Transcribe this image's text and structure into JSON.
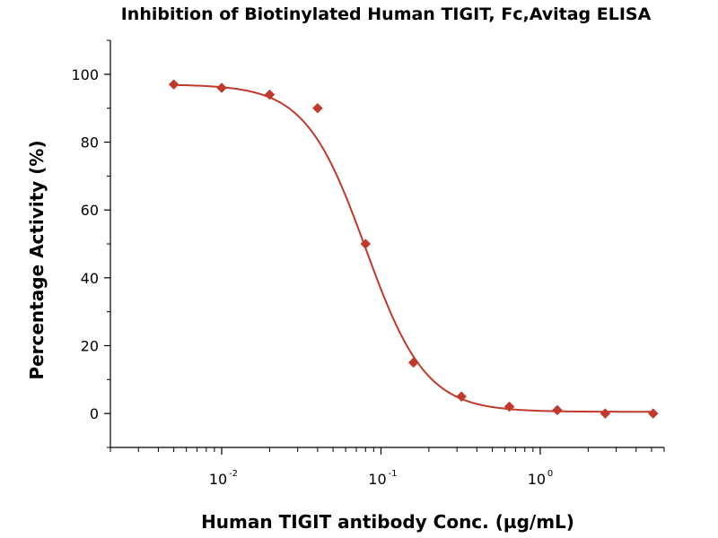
{
  "chart_data": {
    "type": "scatter",
    "title": "Inhibition of Biotinylated Human TIGIT, Fc,Avitag ELISA",
    "xlabel": "Human TIGIT antibody Conc. (µg/mL)",
    "ylabel": "Percentage Activity (%)",
    "xscale": "log",
    "xlim": [
      0.002,
      6
    ],
    "ylim": [
      -10,
      110
    ],
    "ytick_values": [
      0,
      20,
      40,
      60,
      80,
      100
    ],
    "ytick_labels": [
      "0",
      "20",
      "40",
      "60",
      "80",
      "100"
    ],
    "xtick_values": [
      0.01,
      0.1,
      1
    ],
    "xtick_labels": [
      {
        "base": "10",
        "exp": "-2"
      },
      {
        "base": "10",
        "exp": "-1"
      },
      {
        "base": "10",
        "exp": "0"
      }
    ],
    "series": [
      {
        "name": "Percentage Activity",
        "marker": "diamond",
        "x": [
          0.005,
          0.01,
          0.02,
          0.04,
          0.08,
          0.16,
          0.32,
          0.64,
          1.28,
          2.56,
          5.12
        ],
        "y": [
          97,
          96,
          94,
          90,
          50,
          15,
          5,
          2,
          1,
          0,
          0
        ]
      }
    ],
    "fit": {
      "type": "4PL",
      "top": 97,
      "bottom": 0.5,
      "ic50": 0.08,
      "hill": 2.3
    },
    "color": "#C0392B"
  }
}
